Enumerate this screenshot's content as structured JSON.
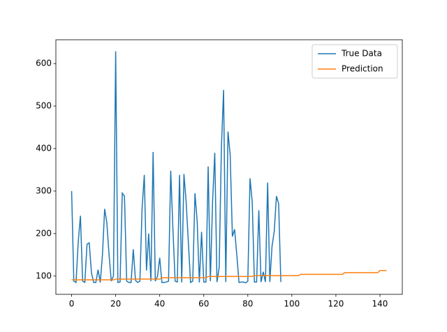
{
  "chart_data": {
    "type": "line",
    "x": [
      0,
      1,
      2,
      3,
      4,
      5,
      6,
      7,
      8,
      9,
      10,
      11,
      12,
      13,
      14,
      15,
      16,
      17,
      18,
      19,
      20,
      21,
      22,
      23,
      24,
      25,
      26,
      27,
      28,
      29,
      30,
      31,
      32,
      33,
      34,
      35,
      36,
      37,
      38,
      39,
      40,
      41,
      42,
      43,
      44,
      45,
      46,
      47,
      48,
      49,
      50,
      51,
      52,
      53,
      54,
      55,
      56,
      57,
      58,
      59,
      60,
      61,
      62,
      63,
      64,
      65,
      66,
      67,
      68,
      69,
      70,
      71,
      72,
      73,
      74,
      75,
      76,
      77,
      78,
      79,
      80,
      81,
      82,
      83,
      84,
      85,
      86,
      87,
      88,
      89,
      90,
      91,
      92,
      93,
      94,
      95,
      96,
      97,
      98,
      99,
      100,
      101,
      102,
      103,
      104,
      105,
      106,
      107,
      108,
      109,
      110,
      111,
      112,
      113,
      114,
      115,
      116,
      117,
      118,
      119,
      120,
      121,
      122,
      123,
      124,
      125,
      126,
      127,
      128,
      129,
      130,
      131,
      132,
      133,
      134,
      135,
      136,
      137,
      138,
      139,
      140,
      141,
      142,
      143
    ],
    "series": [
      {
        "name": "True Data",
        "color": "#1f77b4",
        "values": [
          300,
          88,
          85,
          180,
          242,
          88,
          85,
          175,
          178,
          108,
          85,
          85,
          115,
          85,
          150,
          258,
          225,
          150,
          88,
          100,
          629,
          85,
          86,
          295,
          288,
          88,
          85,
          85,
          163,
          90,
          85,
          88,
          260,
          338,
          113,
          200,
          88,
          392,
          88,
          100,
          143,
          85,
          85,
          86,
          88,
          348,
          210,
          88,
          86,
          338,
          85,
          340,
          275,
          180,
          85,
          88,
          295,
          230,
          85,
          204,
          86,
          86,
          358,
          88,
          275,
          390,
          86,
          120,
          400,
          538,
          86,
          440,
          385,
          193,
          210,
          150,
          85,
          86,
          86,
          84,
          88,
          330,
          275,
          86,
          86,
          255,
          86,
          110,
          86,
          320,
          86,
          170,
          205,
          288,
          270,
          86,
          null,
          null,
          null,
          null,
          null,
          null,
          null,
          null,
          null,
          null,
          null,
          null,
          null,
          null,
          null,
          null,
          null,
          null,
          null,
          null,
          null,
          null,
          null,
          null,
          null,
          null,
          null,
          null,
          null,
          null,
          null,
          null,
          null,
          null,
          null,
          null,
          null,
          null,
          null,
          null,
          null,
          null,
          null,
          null,
          null,
          null,
          null,
          null
        ]
      },
      {
        "name": "Prediction",
        "color": "#ff7f0e",
        "values": [
          91,
          91,
          91,
          91,
          91,
          91,
          91,
          91,
          91,
          91,
          91,
          91,
          91,
          91,
          91,
          91,
          91,
          91,
          91,
          91,
          93,
          93,
          93,
          93,
          93,
          93,
          93,
          93,
          93,
          93,
          93,
          93,
          93,
          93,
          93,
          93,
          93,
          93,
          93,
          93,
          93,
          96,
          96,
          96,
          96,
          96,
          96,
          96,
          96,
          96,
          96,
          96,
          96,
          96,
          96,
          96,
          96,
          96,
          96,
          96,
          96,
          96,
          99,
          99,
          99,
          99,
          99,
          99,
          99,
          99,
          99,
          99,
          99,
          99,
          99,
          99,
          99,
          99,
          99,
          99,
          99,
          99,
          99,
          101,
          101,
          101,
          101,
          101,
          101,
          101,
          101,
          101,
          101,
          101,
          101,
          101,
          101,
          101,
          101,
          101,
          101,
          101,
          101,
          101,
          104,
          104,
          104,
          104,
          104,
          104,
          104,
          104,
          104,
          104,
          104,
          104,
          104,
          104,
          104,
          104,
          104,
          104,
          104,
          104,
          108,
          108,
          108,
          108,
          108,
          108,
          108,
          108,
          108,
          108,
          108,
          108,
          108,
          108,
          108,
          108,
          113,
          113,
          113,
          113
        ]
      }
    ],
    "xlim": [
      -7.15,
      150.15
    ],
    "xticks": [
      0,
      20,
      40,
      60,
      80,
      100,
      120,
      140
    ],
    "ylim": [
      57,
      656
    ],
    "yticks": [
      100,
      200,
      300,
      400,
      500,
      600
    ],
    "legend": "upper right"
  }
}
